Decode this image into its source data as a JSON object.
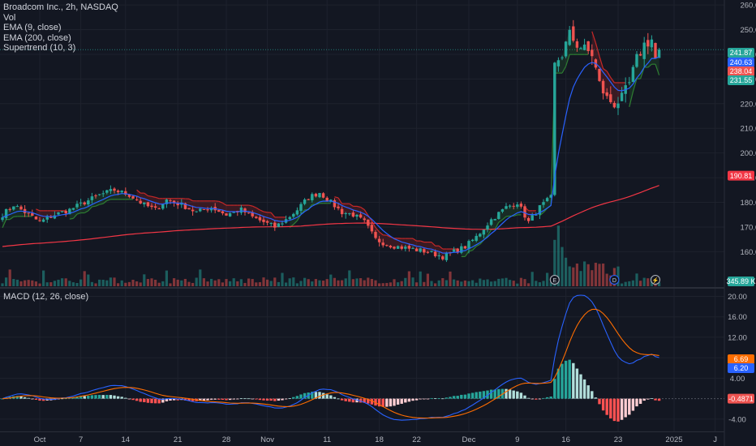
{
  "legend": {
    "title": "Broadcom Inc., 2h, NASDAQ",
    "vol": "Vol",
    "ema9": "EMA (9, close)",
    "ema200": "EMA (200, close)",
    "supertrend": "Supertrend (10, 3)",
    "macd": "MACD (12, 26, close)"
  },
  "colors": {
    "background": "#131722",
    "grid": "#1e222d",
    "up": "#26a69a",
    "down": "#ef5350",
    "ema9": "#2962ff",
    "ema200": "#f23645",
    "macd_line": "#2962ff",
    "signal_line": "#ff6d00",
    "st_up": "#2e7d32",
    "st_down": "#c62828",
    "text": "#b2b5be"
  },
  "chart_data": [
    {
      "type": "candlestick",
      "panel": "price",
      "y_ticks": [
        "160.00",
        "170.00",
        "180.00",
        "190.00",
        "200.00",
        "210.00",
        "220.00",
        "230.00",
        "240.00",
        "250.00",
        "260.00"
      ],
      "ylim": [
        146,
        262
      ],
      "x_ticks": [
        {
          "label": "Oct",
          "i": 10
        },
        {
          "label": "7",
          "i": 21
        },
        {
          "label": "14",
          "i": 33
        },
        {
          "label": "21",
          "i": 47
        },
        {
          "label": "28",
          "i": 60
        },
        {
          "label": "Nov",
          "i": 71
        },
        {
          "label": "11",
          "i": 87
        },
        {
          "label": "18",
          "i": 101
        },
        {
          "label": "22",
          "i": 111
        },
        {
          "label": "Dec",
          "i": 125
        },
        {
          "label": "9",
          "i": 138
        },
        {
          "label": "16",
          "i": 151
        },
        {
          "label": "23",
          "i": 165
        },
        {
          "label": "2025",
          "i": 180
        },
        {
          "label": "J",
          "i": 191
        }
      ],
      "waypoints": [
        [
          0,
          175
        ],
        [
          3,
          179
        ],
        [
          6,
          176
        ],
        [
          10,
          172
        ],
        [
          14,
          175
        ],
        [
          18,
          177
        ],
        [
          22,
          180
        ],
        [
          26,
          183
        ],
        [
          30,
          185
        ],
        [
          34,
          183
        ],
        [
          38,
          179
        ],
        [
          41,
          177
        ],
        [
          44,
          181
        ],
        [
          48,
          179
        ],
        [
          52,
          176
        ],
        [
          56,
          178
        ],
        [
          60,
          175
        ],
        [
          64,
          177
        ],
        [
          67,
          174
        ],
        [
          70,
          172
        ],
        [
          73,
          170
        ],
        [
          76,
          173
        ],
        [
          79,
          177
        ],
        [
          82,
          182
        ],
        [
          85,
          184
        ],
        [
          88,
          180
        ],
        [
          91,
          176
        ],
        [
          94,
          175
        ],
        [
          97,
          172
        ],
        [
          100,
          165
        ],
        [
          103,
          163
        ],
        [
          106,
          162
        ],
        [
          110,
          161
        ],
        [
          114,
          160
        ],
        [
          118,
          158
        ],
        [
          121,
          160
        ],
        [
          124,
          162
        ],
        [
          127,
          166
        ],
        [
          131,
          173
        ],
        [
          135,
          178
        ],
        [
          138,
          180
        ],
        [
          141,
          172
        ],
        [
          144,
          178
        ],
        [
          147,
          182
        ],
        [
          148,
          236
        ],
        [
          150,
          240
        ],
        [
          152,
          248
        ],
        [
          154,
          244
        ],
        [
          156,
          242
        ],
        [
          158,
          240
        ],
        [
          160,
          228
        ],
        [
          162,
          222
        ],
        [
          164,
          220
        ],
        [
          166,
          222
        ],
        [
          168,
          228
        ],
        [
          170,
          238
        ],
        [
          172,
          244
        ],
        [
          174,
          246
        ],
        [
          175,
          238
        ],
        [
          176,
          241.87
        ]
      ],
      "last_price": "241.87",
      "ema9_last": "240.63",
      "supertrend_upper_last": "238.04",
      "supertrend_lower_last": "231.55",
      "ema200_last": "190.81",
      "volume_last": "345.89 K",
      "event_markers": [
        {
          "label": "E",
          "i": 148,
          "kind": "earnings"
        },
        {
          "label": "D",
          "i": 164,
          "kind": "dividend"
        },
        {
          "label": "⚡",
          "i": 175,
          "kind": "news"
        }
      ]
    },
    {
      "type": "macd",
      "panel": "macd",
      "y_ticks": [
        "-4.00",
        "4.00",
        "8.00",
        "12.00",
        "16.00",
        "20.00"
      ],
      "ylim": [
        -6.4,
        21.5
      ],
      "macd_last": "6.20",
      "signal_last": "6.69",
      "histogram_last": "-0.4871"
    }
  ]
}
